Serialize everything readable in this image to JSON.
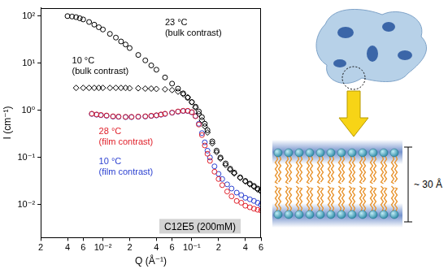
{
  "chart_data": {
    "type": "scatter",
    "log": true,
    "grid": false,
    "x_label": "Q (Å⁻¹)",
    "y_label": "I (cm⁻¹)",
    "xlim": [
      0.002,
      0.6
    ],
    "ylim": [
      0.002,
      150
    ],
    "xticks": [
      {
        "value": 0.002,
        "label": "2"
      },
      {
        "value": 0.004,
        "label": "4"
      },
      {
        "value": 0.006,
        "label": "6"
      },
      {
        "value": 0.01,
        "label": "10⁻²"
      },
      {
        "value": 0.02,
        "label": "2"
      },
      {
        "value": 0.04,
        "label": "4"
      },
      {
        "value": 0.06,
        "label": "6"
      },
      {
        "value": 0.1,
        "label": "10⁻¹"
      },
      {
        "value": 0.2,
        "label": "2"
      },
      {
        "value": 0.4,
        "label": "4"
      },
      {
        "value": 0.6,
        "label": "6"
      }
    ],
    "yticks": [
      {
        "value": 0.01,
        "label": "10⁻²"
      },
      {
        "value": 0.1,
        "label": "10⁻¹"
      },
      {
        "value": 1,
        "label": "10⁰"
      },
      {
        "value": 10,
        "label": "10¹"
      },
      {
        "value": 100,
        "label": "10²"
      }
    ],
    "box_label": "C12E5 (200mM)",
    "series": [
      {
        "name": "23 °C (bulk contrast)",
        "color": "#000000",
        "marker": "circle",
        "x": [
          0.004,
          0.0045,
          0.005,
          0.0055,
          0.006,
          0.007,
          0.008,
          0.009,
          0.01,
          0.012,
          0.014,
          0.016,
          0.018,
          0.02,
          0.025,
          0.03,
          0.035,
          0.04,
          0.05,
          0.06,
          0.07,
          0.08,
          0.09,
          0.1,
          0.11,
          0.12,
          0.13,
          0.14,
          0.15,
          0.17,
          0.19,
          0.21,
          0.24,
          0.27,
          0.3,
          0.35,
          0.4,
          0.45,
          0.5,
          0.55,
          0.6
        ],
        "values": [
          100,
          98,
          95,
          90,
          85,
          75,
          66,
          58,
          52,
          42,
          35,
          29,
          25,
          21,
          15,
          11.5,
          9.0,
          7.3,
          5.0,
          3.7,
          2.9,
          2.3,
          1.85,
          1.5,
          1.2,
          0.95,
          0.72,
          0.52,
          0.38,
          0.22,
          0.14,
          0.1,
          0.075,
          0.058,
          0.048,
          0.038,
          0.032,
          0.028,
          0.025,
          0.022,
          0.02
        ]
      },
      {
        "name": "10 °C (bulk contrast)",
        "color": "#000000",
        "marker": "diamond",
        "x": [
          0.005,
          0.006,
          0.007,
          0.008,
          0.009,
          0.01,
          0.012,
          0.014,
          0.016,
          0.018,
          0.02,
          0.025,
          0.03,
          0.035,
          0.04,
          0.05,
          0.06,
          0.07,
          0.08,
          0.09,
          0.1,
          0.11,
          0.12,
          0.13,
          0.14,
          0.15,
          0.17,
          0.19,
          0.21,
          0.24,
          0.27,
          0.3,
          0.35,
          0.4,
          0.45,
          0.5,
          0.55,
          0.6
        ],
        "values": [
          3.0,
          3.0,
          3.0,
          3.0,
          3.0,
          3.0,
          3.0,
          3.0,
          3.0,
          3.0,
          2.95,
          2.95,
          2.9,
          2.9,
          2.85,
          2.8,
          2.7,
          2.5,
          2.2,
          1.9,
          1.5,
          1.15,
          0.85,
          0.62,
          0.46,
          0.34,
          0.2,
          0.13,
          0.095,
          0.07,
          0.055,
          0.046,
          0.037,
          0.031,
          0.027,
          0.024,
          0.021,
          0.019
        ]
      },
      {
        "name": "28 °C (film contrast)",
        "color": "#e0202a",
        "marker": "circle",
        "x": [
          0.0075,
          0.0085,
          0.0095,
          0.011,
          0.013,
          0.015,
          0.018,
          0.021,
          0.025,
          0.03,
          0.035,
          0.04,
          0.045,
          0.05,
          0.06,
          0.07,
          0.08,
          0.09,
          0.1,
          0.11,
          0.12,
          0.13,
          0.14,
          0.15,
          0.16,
          0.18,
          0.2,
          0.22,
          0.25,
          0.28,
          0.32,
          0.36,
          0.4,
          0.45,
          0.5,
          0.55,
          0.6
        ],
        "values": [
          0.85,
          0.82,
          0.8,
          0.78,
          0.75,
          0.74,
          0.73,
          0.73,
          0.74,
          0.75,
          0.77,
          0.79,
          0.82,
          0.85,
          0.9,
          0.95,
          0.98,
          0.98,
          0.92,
          0.75,
          0.5,
          0.3,
          0.18,
          0.12,
          0.085,
          0.05,
          0.035,
          0.026,
          0.019,
          0.015,
          0.012,
          0.011,
          0.0095,
          0.0088,
          0.0082,
          0.0078,
          0.0075
        ]
      },
      {
        "name": "10 °C (film contrast)",
        "color": "#2a3fd0",
        "marker": "circle",
        "x": [
          0.0075,
          0.0085,
          0.0095,
          0.011,
          0.013,
          0.015,
          0.018,
          0.021,
          0.025,
          0.03,
          0.035,
          0.04,
          0.045,
          0.05,
          0.06,
          0.07,
          0.08,
          0.09,
          0.1,
          0.11,
          0.12,
          0.13,
          0.14,
          0.15,
          0.16,
          0.18,
          0.2,
          0.22,
          0.25,
          0.28,
          0.32,
          0.36,
          0.4,
          0.45,
          0.5,
          0.55,
          0.6
        ],
        "values": [
          0.84,
          0.81,
          0.79,
          0.77,
          0.74,
          0.73,
          0.72,
          0.72,
          0.73,
          0.74,
          0.76,
          0.78,
          0.81,
          0.84,
          0.89,
          0.94,
          0.97,
          0.97,
          0.91,
          0.76,
          0.52,
          0.33,
          0.21,
          0.14,
          0.1,
          0.065,
          0.045,
          0.035,
          0.027,
          0.022,
          0.018,
          0.016,
          0.014,
          0.013,
          0.012,
          0.011,
          0.01
        ]
      }
    ]
  },
  "diagram": {
    "thickness_label": "~ 30 Å"
  }
}
